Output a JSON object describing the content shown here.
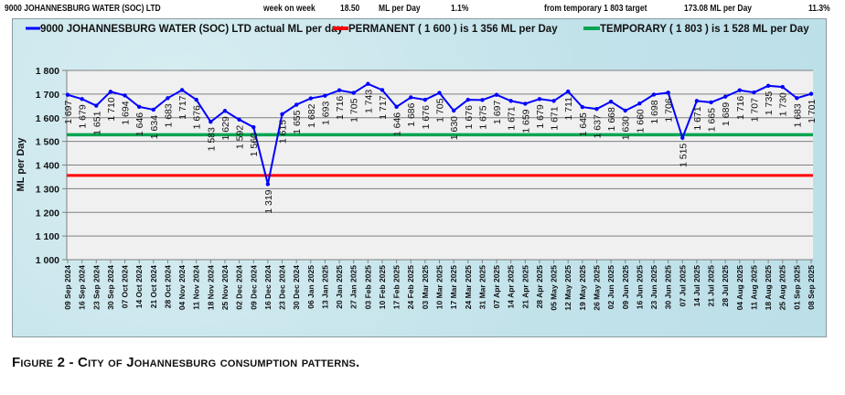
{
  "header": {
    "org": "9000 JOHANNESBURG WATER (SOC) LTD",
    "wow_label": "week on week",
    "wow_value": "18.50",
    "wow_unit": "ML per Day",
    "wow_pct": "1.1%",
    "target_label": "from temporary 1 803 target",
    "target_value": "173.08 ML per Day",
    "target_pct": "11.3%"
  },
  "caption": "Figure 2 - City of Johannesburg consumption patterns.",
  "colors": {
    "actual": "#0000ff",
    "permanent": "#ff0000",
    "temporary": "#00a550",
    "grid": "#808080",
    "plot_bg": "#f0f0f0"
  },
  "chart_data": {
    "type": "line",
    "ylabel": "ML per Day",
    "xlabel": "",
    "ylim": [
      1000,
      1800
    ],
    "yticks": [
      "1 000",
      "1 100",
      "1 200",
      "1 300",
      "1 400",
      "1 500",
      "1 600",
      "1 700",
      "1 800"
    ],
    "grid": true,
    "legend_position": "top",
    "categories": [
      "09 Sep 2024",
      "16 Sep 2024",
      "23 Sep 2024",
      "30 Sep 2024",
      "07 Oct 2024",
      "14 Oct 2024",
      "21 Oct 2024",
      "28 Oct 2024",
      "04 Nov 2024",
      "11 Nov 2024",
      "18 Nov 2024",
      "25 Nov 2024",
      "02 Dec 2024",
      "09 Dec 2024",
      "16 Dec 2024",
      "23 Dec 2024",
      "30 Dec 2024",
      "06 Jan 2025",
      "13 Jan 2025",
      "20 Jan 2025",
      "27 Jan 2025",
      "03 Feb 2025",
      "10 Feb 2025",
      "17 Feb 2025",
      "24 Feb 2025",
      "03 Mar 2025",
      "10 Mar 2025",
      "17 Mar 2025",
      "24 Mar 2025",
      "31 Mar 2025",
      "07 Apr 2025",
      "14 Apr 2025",
      "21 Apr 2025",
      "28 Apr 2025",
      "05 May 2025",
      "12 May 2025",
      "19 May 2025",
      "26 May 2025",
      "02 Jun 2025",
      "09 Jun 2025",
      "16 Jun 2025",
      "23 Jun 2025",
      "30 Jun 2025",
      "07 Jul 2025",
      "14 Jul 2025",
      "21 Jul 2025",
      "28 Jul 2025",
      "04 Aug 2025",
      "11 Aug 2025",
      "18 Aug 2025",
      "25 Aug 2025",
      "01 Sep 2025",
      "08 Sep 2025"
    ],
    "series": [
      {
        "name": "9000 JOHANNESBURG WATER (SOC) LTD actual ML per day",
        "values": [
          1697,
          1679,
          1651,
          1710,
          1694,
          1646,
          1634,
          1683,
          1717,
          1676,
          1583,
          1629,
          1592,
          1560,
          1319,
          1615,
          1655,
          1682,
          1693,
          1716,
          1705,
          1743,
          1717,
          1646,
          1686,
          1676,
          1705,
          1630,
          1676,
          1675,
          1697,
          1671,
          1659,
          1679,
          1671,
          1711,
          1645,
          1637,
          1668,
          1630,
          1660,
          1698,
          1706,
          1515,
          1671,
          1665,
          1689,
          1716,
          1707,
          1735,
          1730,
          1683,
          1701
        ]
      },
      {
        "name": "PERMANENT ( 1 600 ) is 1 356 ML per Day",
        "constant": 1356
      },
      {
        "name": "TEMPORARY ( 1 803 ) is 1 528 ML per Day",
        "constant": 1528
      }
    ]
  }
}
